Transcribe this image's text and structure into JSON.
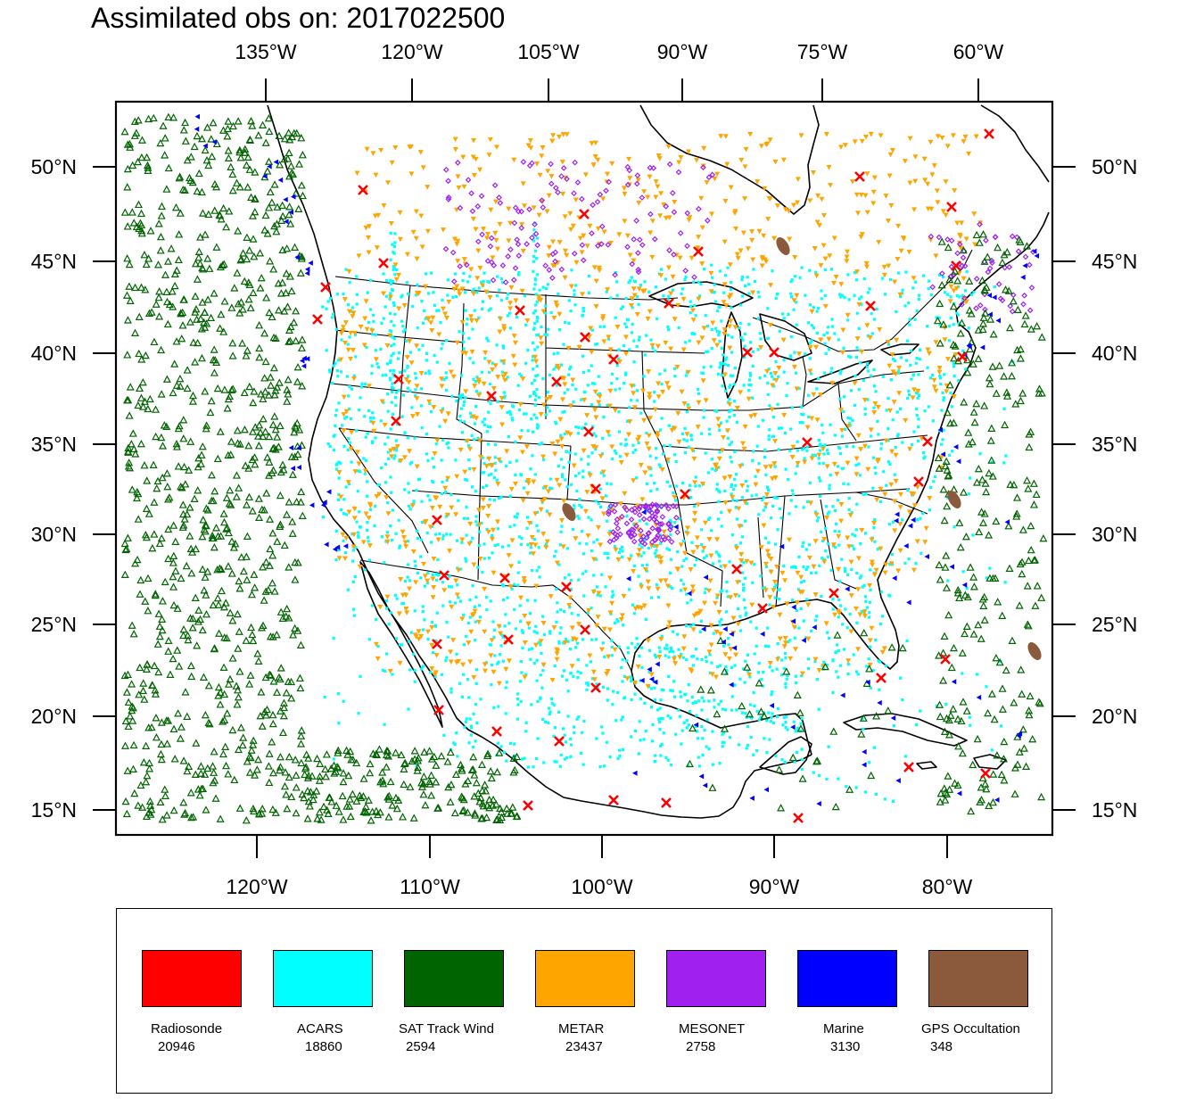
{
  "title": "Assimilated obs on: 2017022500",
  "map": {
    "top_lon_labels": [
      "135°W",
      "120°W",
      "105°W",
      "90°W",
      "75°W",
      "60°W"
    ],
    "bottom_lon_labels": [
      "120°W",
      "110°W",
      "100°W",
      "90°W",
      "80°W"
    ],
    "lat_labels": [
      "50°N",
      "45°N",
      "40°N",
      "35°N",
      "30°N",
      "25°N",
      "20°N",
      "15°N"
    ]
  },
  "legend": [
    {
      "name": "Radiosonde",
      "count": "20946",
      "color": "#ff0000",
      "marker": "x-mark"
    },
    {
      "name": "ACARS",
      "count": "18860",
      "color": "#00ffff",
      "marker": "square-dot"
    },
    {
      "name": "SAT Track Wind",
      "count": "2594",
      "color": "#006400",
      "marker": "hollow-triangle"
    },
    {
      "name": "METAR",
      "count": "23437",
      "color": "#ffa500",
      "marker": "down-triangle"
    },
    {
      "name": "MESONET",
      "count": "2758",
      "color": "#a020f0",
      "marker": "diamond"
    },
    {
      "name": "Marine",
      "count": "3130",
      "color": "#0000ff",
      "marker": "left-triangle"
    },
    {
      "name": "GPS Occultation",
      "count": "348",
      "color": "#8b5a3c",
      "marker": "blob"
    }
  ]
}
